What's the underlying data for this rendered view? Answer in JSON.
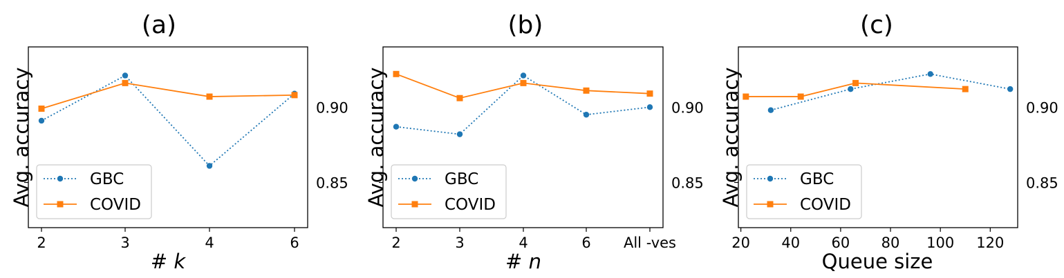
{
  "colors": {
    "gbc": "#1f77b4",
    "covid": "#ff7f0e",
    "axis": "#000000",
    "legend_border": "#cccccc"
  },
  "chart_data": [
    {
      "type": "line",
      "title": "(a)",
      "xlabel_prefix": "# ",
      "xlabel_var": "k",
      "ylabel": "Avg. accuracy",
      "x_ticks": [
        "2",
        "3",
        "4",
        "6"
      ],
      "y_ticks": [
        "0.90",
        "0.85"
      ],
      "ylim": [
        0.82,
        0.94
      ],
      "legend_position": "lower-left",
      "series": [
        {
          "name": "GBC",
          "style": "dotted",
          "marker": "circle",
          "x": [
            "2",
            "3",
            "4",
            "6"
          ],
          "values": [
            0.891,
            0.921,
            0.861,
            0.909
          ]
        },
        {
          "name": "COVID",
          "style": "solid",
          "marker": "square",
          "x": [
            "2",
            "3",
            "4",
            "6"
          ],
          "values": [
            0.899,
            0.916,
            0.907,
            0.908
          ]
        }
      ]
    },
    {
      "type": "line",
      "title": "(b)",
      "xlabel_prefix": "# ",
      "xlabel_var": "n",
      "ylabel": "Avg. accuracy",
      "x_ticks": [
        "2",
        "3",
        "4",
        "6",
        "All -ves"
      ],
      "y_ticks": [
        "0.90",
        "0.85"
      ],
      "ylim": [
        0.82,
        0.94
      ],
      "legend_position": "lower-left",
      "series": [
        {
          "name": "GBC",
          "style": "dotted",
          "marker": "circle",
          "x": [
            "2",
            "3",
            "4",
            "6",
            "All -ves"
          ],
          "values": [
            0.887,
            0.882,
            0.921,
            0.895,
            0.9
          ]
        },
        {
          "name": "COVID",
          "style": "solid",
          "marker": "square",
          "x": [
            "2",
            "3",
            "4",
            "6",
            "All -ves"
          ],
          "values": [
            0.922,
            0.906,
            0.916,
            0.911,
            0.909
          ]
        }
      ]
    },
    {
      "type": "line",
      "title": "(c)",
      "xlabel": "Queue size",
      "ylabel": "Avg. accuracy",
      "x_ticks": [
        "20",
        "40",
        "60",
        "80",
        "100",
        "120"
      ],
      "y_ticks": [
        "0.90",
        "0.85"
      ],
      "xlim": [
        19,
        131
      ],
      "ylim": [
        0.82,
        0.94
      ],
      "legend_position": "lower-left",
      "series": [
        {
          "name": "GBC",
          "style": "dotted",
          "marker": "circle",
          "x": [
            32,
            64,
            96,
            128
          ],
          "values": [
            0.898,
            0.912,
            0.922,
            0.912
          ]
        },
        {
          "name": "COVID",
          "style": "solid",
          "marker": "square",
          "x": [
            22,
            44,
            66,
            110
          ],
          "values": [
            0.907,
            0.907,
            0.916,
            0.912
          ]
        }
      ]
    }
  ]
}
